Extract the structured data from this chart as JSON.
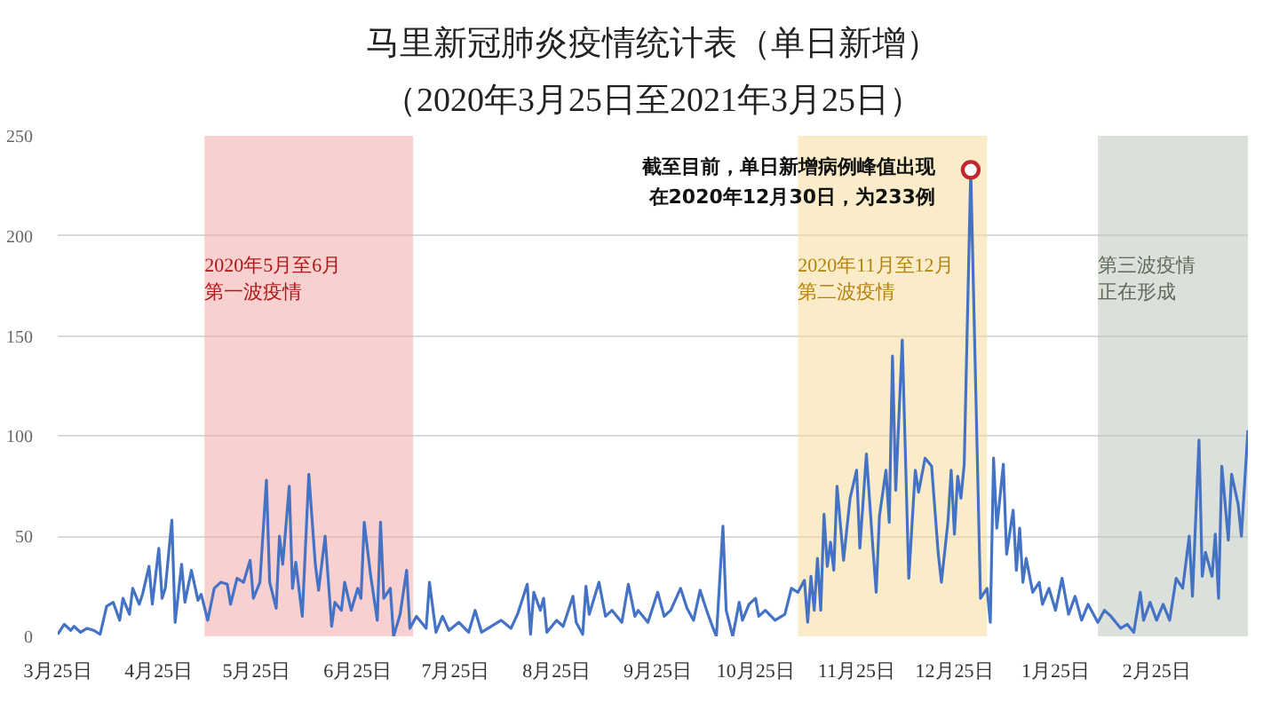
{
  "chart_data": {
    "type": "line",
    "title": "马里新冠肺炎疫情统计表（单日新增）",
    "subtitle": "（2020年3月25日至2021年3月25日）",
    "xlim": [
      "2020-03-25",
      "2021-03-25"
    ],
    "xticks": [
      {
        "value": "2020-03-25",
        "label": "3月25日"
      },
      {
        "value": "2020-04-25",
        "label": "4月25日"
      },
      {
        "value": "2020-05-25",
        "label": "5月25日"
      },
      {
        "value": "2020-06-25",
        "label": "6月25日"
      },
      {
        "value": "2020-07-25",
        "label": "7月25日"
      },
      {
        "value": "2020-08-25",
        "label": "8月25日"
      },
      {
        "value": "2020-09-25",
        "label": "9月25日"
      },
      {
        "value": "2020-10-25",
        "label": "10月25日"
      },
      {
        "value": "2020-11-25",
        "label": "11月25日"
      },
      {
        "value": "2020-12-25",
        "label": "12月25日"
      },
      {
        "value": "2021-01-25",
        "label": "1月25日"
      },
      {
        "value": "2021-02-25",
        "label": "2月25日"
      }
    ],
    "ylim": [
      0,
      250
    ],
    "yticks": [
      0,
      50,
      100,
      150,
      200,
      250
    ],
    "grid": "y",
    "bands": [
      {
        "axis": "x",
        "from": "2020-05-09",
        "to": "2020-07-12",
        "color": "#f4a9a9",
        "label": "2020年5月至6月第一波疫情"
      },
      {
        "axis": "x",
        "from": "2020-11-07",
        "to": "2021-01-04",
        "color": "#f7dc9c",
        "label": "2020年11月至12月第二波疫情"
      },
      {
        "axis": "x",
        "from": "2021-02-07",
        "to": "2021-03-25",
        "color": "#bfc7bb",
        "label": "第三波疫情正在形成"
      }
    ],
    "annotations": [
      {
        "text": "截至目前，单日新增病例峰值出现在2020年12月30日，为233例",
        "x": "2020-12-30",
        "y": 233
      }
    ],
    "series": [
      {
        "color": "#4472c4",
        "x": [
          "2020-03-25",
          "2020-03-27",
          "2020-03-29",
          "2020-03-30",
          "2020-04-01",
          "2020-04-03",
          "2020-04-05",
          "2020-04-07",
          "2020-04-09",
          "2020-04-11",
          "2020-04-13",
          "2020-04-14",
          "2020-04-16",
          "2020-04-17",
          "2020-04-19",
          "2020-04-20",
          "2020-04-22",
          "2020-04-23",
          "2020-04-25",
          "2020-04-26",
          "2020-04-27",
          "2020-04-29",
          "2020-04-30",
          "2020-05-02",
          "2020-05-03",
          "2020-05-05",
          "2020-05-07",
          "2020-05-08",
          "2020-05-10",
          "2020-05-12",
          "2020-05-14",
          "2020-05-16",
          "2020-05-17",
          "2020-05-19",
          "2020-05-21",
          "2020-05-23",
          "2020-05-24",
          "2020-05-26",
          "2020-05-28",
          "2020-05-29",
          "2020-05-31",
          "2020-06-01",
          "2020-06-02",
          "2020-06-04",
          "2020-06-05",
          "2020-06-06",
          "2020-06-08",
          "2020-06-10",
          "2020-06-12",
          "2020-06-13",
          "2020-06-15",
          "2020-06-17",
          "2020-06-18",
          "2020-06-20",
          "2020-06-21",
          "2020-06-23",
          "2020-06-25",
          "2020-06-26",
          "2020-06-27",
          "2020-06-29",
          "2020-07-01",
          "2020-07-02",
          "2020-07-03",
          "2020-07-05",
          "2020-07-06",
          "2020-07-08",
          "2020-07-10",
          "2020-07-11",
          "2020-07-13",
          "2020-07-16",
          "2020-07-17",
          "2020-07-19",
          "2020-07-21",
          "2020-07-23",
          "2020-07-26",
          "2020-07-29",
          "2020-07-31",
          "2020-08-02",
          "2020-08-05",
          "2020-08-08",
          "2020-08-11",
          "2020-08-13",
          "2020-08-16",
          "2020-08-17",
          "2020-08-18",
          "2020-08-20",
          "2020-08-21",
          "2020-08-22",
          "2020-08-25",
          "2020-08-27",
          "2020-08-30",
          "2020-08-31",
          "2020-09-02",
          "2020-09-03",
          "2020-09-04",
          "2020-09-07",
          "2020-09-09",
          "2020-09-11",
          "2020-09-14",
          "2020-09-16",
          "2020-09-18",
          "2020-09-19",
          "2020-09-22",
          "2020-09-25",
          "2020-09-27",
          "2020-09-29",
          "2020-10-02",
          "2020-10-04",
          "2020-10-06",
          "2020-10-08",
          "2020-10-10",
          "2020-10-12",
          "2020-10-13",
          "2020-10-15",
          "2020-10-16",
          "2020-10-18",
          "2020-10-20",
          "2020-10-21",
          "2020-10-23",
          "2020-10-25",
          "2020-10-26",
          "2020-10-28",
          "2020-10-31",
          "2020-11-03",
          "2020-11-05",
          "2020-11-07",
          "2020-11-09",
          "2020-11-10",
          "2020-11-11",
          "2020-11-12",
          "2020-11-13",
          "2020-11-14",
          "2020-11-15",
          "2020-11-16",
          "2020-11-17",
          "2020-11-18",
          "2020-11-19",
          "2020-11-21",
          "2020-11-23",
          "2020-11-25",
          "2020-11-26",
          "2020-11-28",
          "2020-11-30",
          "2020-12-01",
          "2020-12-02",
          "2020-12-04",
          "2020-12-05",
          "2020-12-06",
          "2020-12-07",
          "2020-12-09",
          "2020-12-11",
          "2020-12-13",
          "2020-12-14",
          "2020-12-16",
          "2020-12-18",
          "2020-12-20",
          "2020-12-21",
          "2020-12-23",
          "2020-12-24",
          "2020-12-25",
          "2020-12-26",
          "2020-12-27",
          "2020-12-28",
          "2020-12-30",
          "2021-01-02",
          "2021-01-04",
          "2021-01-05",
          "2021-01-06",
          "2021-01-07",
          "2021-01-09",
          "2021-01-10",
          "2021-01-12",
          "2021-01-13",
          "2021-01-14",
          "2021-01-15",
          "2021-01-16",
          "2021-01-18",
          "2021-01-20",
          "2021-01-21",
          "2021-01-23",
          "2021-01-25",
          "2021-01-27",
          "2021-01-29",
          "2021-01-31",
          "2021-02-02",
          "2021-02-04",
          "2021-02-07",
          "2021-02-09",
          "2021-02-11",
          "2021-02-14",
          "2021-02-16",
          "2021-02-18",
          "2021-02-20",
          "2021-02-21",
          "2021-02-23",
          "2021-02-25",
          "2021-02-27",
          "2021-03-01",
          "2021-03-03",
          "2021-03-05",
          "2021-03-07",
          "2021-03-08",
          "2021-03-10",
          "2021-03-11",
          "2021-03-12",
          "2021-03-14",
          "2021-03-15",
          "2021-03-16",
          "2021-03-17",
          "2021-03-19",
          "2021-03-20",
          "2021-03-22",
          "2021-03-23",
          "2021-03-25"
        ],
        "values": [
          1,
          6,
          3,
          5,
          2,
          4,
          3,
          1,
          15,
          17,
          8,
          19,
          11,
          24,
          16,
          21,
          35,
          16,
          44,
          19,
          24,
          58,
          7,
          36,
          17,
          33,
          18,
          21,
          8,
          24,
          27,
          26,
          16,
          29,
          27,
          38,
          19,
          27,
          78,
          27,
          14,
          50,
          36,
          75,
          24,
          37,
          10,
          81,
          36,
          23,
          50,
          5,
          17,
          13,
          27,
          13,
          24,
          19,
          57,
          30,
          8,
          57,
          19,
          24,
          0,
          11,
          33,
          4,
          10,
          4,
          27,
          2,
          10,
          3,
          7,
          2,
          13,
          2,
          5,
          8,
          4,
          11,
          26,
          1,
          22,
          13,
          19,
          2,
          8,
          5,
          20,
          7,
          1,
          25,
          11,
          27,
          10,
          13,
          7,
          26,
          10,
          13,
          7,
          22,
          10,
          13,
          24,
          14,
          8,
          23,
          13,
          4,
          0,
          55,
          13,
          0,
          17,
          8,
          16,
          19,
          10,
          13,
          8,
          11,
          24,
          22,
          28,
          7,
          30,
          13,
          39,
          13,
          61,
          35,
          47,
          33,
          75,
          38,
          69,
          83,
          44,
          91,
          44,
          22,
          60,
          83,
          57,
          140,
          73,
          148,
          29,
          83,
          72,
          89,
          85,
          42,
          27,
          57,
          83,
          51,
          80,
          69,
          86,
          233,
          19,
          24,
          7,
          89,
          54,
          86,
          41,
          63,
          33,
          54,
          27,
          39,
          22,
          27,
          16,
          24,
          13,
          29,
          11,
          20,
          8,
          16,
          7,
          13,
          10,
          4,
          6,
          2,
          22,
          8,
          17,
          8,
          16,
          8,
          29,
          24,
          50,
          20,
          98,
          30,
          42,
          30,
          51,
          19,
          85,
          48,
          81,
          66,
          50,
          103
        ]
      },
      {
        "type": "scatter",
        "color": "#c0282d",
        "marker": "circle",
        "x": [
          "2020-12-30"
        ],
        "values": [
          233
        ]
      }
    ]
  }
}
